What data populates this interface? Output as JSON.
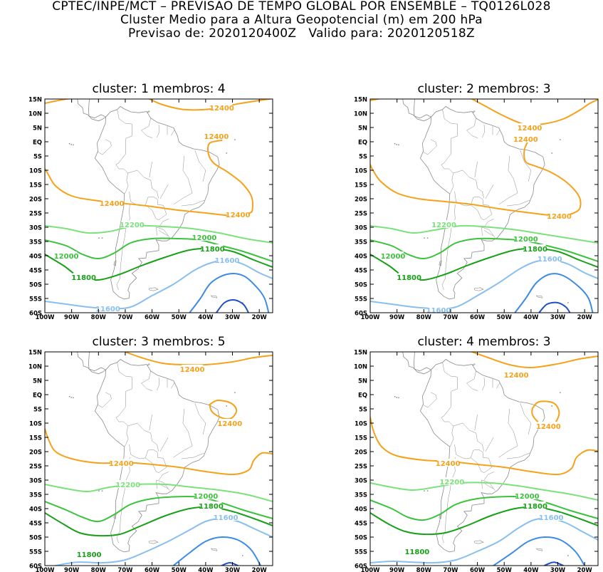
{
  "header": {
    "line1": "CPTEC/INPE/MCT – PREVISAO DE TEMPO GLOBAL POR ENSEMBLE – TQ0126L028",
    "line2": "Cluster Medio para a Altura Geopotencial (m) em 200 hPa",
    "line3": "Previsao de: 2020120400Z   Valido para: 2020120518Z"
  },
  "axes": {
    "lat_ticks": [
      "15N",
      "10N",
      "5N",
      "EQ",
      "5S",
      "10S",
      "15S",
      "20S",
      "25S",
      "30S",
      "35S",
      "40S",
      "45S",
      "50S",
      "55S",
      "60S"
    ],
    "lon_ticks": [
      "100W",
      "90W",
      "80W",
      "70W",
      "60W",
      "50W",
      "40W",
      "30W",
      "20W"
    ],
    "lon_range": [
      -100,
      -15
    ],
    "lat_range": [
      -60,
      15
    ]
  },
  "colors": {
    "c12400": "#f5a21b",
    "c12200": "#7be27b",
    "c12000": "#3cc23c",
    "c11800": "#18a018",
    "c11600": "#88bff0",
    "c11400": "#3c8ce6",
    "c11200": "#1e50c8",
    "map": "#8a8a8a"
  },
  "panels": [
    {
      "title": "cluster: 1   membros: 4",
      "labels": [
        {
          "text": "12400",
          "lon": -34,
          "lat": 12,
          "color": "c12400"
        },
        {
          "text": "12400",
          "lon": -36,
          "lat": 2,
          "color": "c12400"
        },
        {
          "text": "12400",
          "lon": -75,
          "lat": -21.5,
          "color": "c12400"
        },
        {
          "text": "12400",
          "lon": -28,
          "lat": -25.5,
          "color": "c12400"
        },
        {
          "text": "12200",
          "lon": -67.5,
          "lat": -29,
          "color": "c12200"
        },
        {
          "text": "12000",
          "lon": -40.5,
          "lat": -33.5,
          "color": "c12000"
        },
        {
          "text": "12000",
          "lon": -92,
          "lat": -40,
          "color": "c12000"
        },
        {
          "text": "11800",
          "lon": -37.5,
          "lat": -37.5,
          "color": "c11800"
        },
        {
          "text": "11800",
          "lon": -85.5,
          "lat": -47.5,
          "color": "c11800"
        },
        {
          "text": "11600",
          "lon": -32,
          "lat": -41.5,
          "color": "c11600"
        },
        {
          "text": "11600",
          "lon": -76.5,
          "lat": -58.5,
          "color": "c11600"
        }
      ]
    },
    {
      "title": "cluster: 2   membros: 3",
      "labels": [
        {
          "text": "12400",
          "lon": -40.5,
          "lat": 5,
          "color": "c12400"
        },
        {
          "text": "12400",
          "lon": -42,
          "lat": 1,
          "color": "c12400"
        },
        {
          "text": "12400",
          "lon": -29.5,
          "lat": -26,
          "color": "c12400"
        },
        {
          "text": "12200",
          "lon": -72.5,
          "lat": -29,
          "color": "c12200"
        },
        {
          "text": "12000",
          "lon": -42,
          "lat": -34,
          "color": "c12000"
        },
        {
          "text": "12000",
          "lon": -91.5,
          "lat": -40,
          "color": "c12000"
        },
        {
          "text": "11800",
          "lon": -38.5,
          "lat": -37.5,
          "color": "c11800"
        },
        {
          "text": "11800",
          "lon": -85.5,
          "lat": -47.5,
          "color": "c11800"
        },
        {
          "text": "11600",
          "lon": -33,
          "lat": -41,
          "color": "c11600"
        },
        {
          "text": "11600",
          "lon": -74.5,
          "lat": -59,
          "color": "c11600"
        }
      ]
    },
    {
      "title": "cluster: 3   membros: 5",
      "labels": [
        {
          "text": "12400",
          "lon": -45,
          "lat": 9,
          "color": "c12400"
        },
        {
          "text": "12400",
          "lon": -31,
          "lat": -10,
          "color": "c12400"
        },
        {
          "text": "12400",
          "lon": -71.5,
          "lat": -24,
          "color": "c12400"
        },
        {
          "text": "12200",
          "lon": -69,
          "lat": -31.5,
          "color": "c12200"
        },
        {
          "text": "12000",
          "lon": -40,
          "lat": -35.5,
          "color": "c12000"
        },
        {
          "text": "11800",
          "lon": -38,
          "lat": -39,
          "color": "c11800"
        },
        {
          "text": "11800",
          "lon": -83.5,
          "lat": -56,
          "color": "c11800"
        },
        {
          "text": "11600",
          "lon": -32.5,
          "lat": -43,
          "color": "c11600"
        }
      ]
    },
    {
      "title": "cluster: 4   membros: 3",
      "labels": [
        {
          "text": "12400",
          "lon": -45.5,
          "lat": 7,
          "color": "c12400"
        },
        {
          "text": "12400",
          "lon": -33.5,
          "lat": -11,
          "color": "c12400"
        },
        {
          "text": "12400",
          "lon": -71,
          "lat": -24,
          "color": "c12400"
        },
        {
          "text": "12200",
          "lon": -69.5,
          "lat": -30.5,
          "color": "c12200"
        },
        {
          "text": "12000",
          "lon": -41.5,
          "lat": -35.5,
          "color": "c12000"
        },
        {
          "text": "11800",
          "lon": -38.5,
          "lat": -39,
          "color": "c11800"
        },
        {
          "text": "11800",
          "lon": -82.5,
          "lat": -55,
          "color": "c11800"
        },
        {
          "text": "11600",
          "lon": -32.5,
          "lat": -43,
          "color": "c11600"
        }
      ]
    }
  ]
}
